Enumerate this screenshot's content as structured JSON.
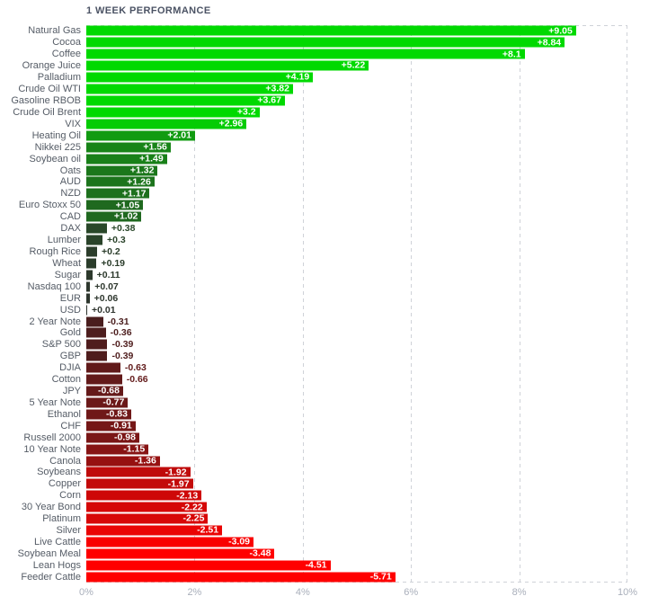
{
  "header": {
    "title": "1 WEEK PERFORMANCE"
  },
  "chart_data": {
    "type": "bar",
    "orientation": "horizontal",
    "title": "1 WEEK PERFORMANCE",
    "xlabel": "",
    "ylabel": "",
    "xlim": [
      0,
      10
    ],
    "x_ticks": [
      "0%",
      "2%",
      "4%",
      "6%",
      "8%",
      "10%"
    ],
    "grid": "dashed vertical gridlines every 2%, dashed top and bottom plot borders",
    "legend": "none",
    "value_semantics": "bar length = absolute weekly % change; green = gain, red = loss; color intensity scales with magnitude",
    "points": [
      {
        "label": "Natural Gas",
        "value": 9.05,
        "display": "+9.05",
        "color": "#00d900"
      },
      {
        "label": "Cocoa",
        "value": 8.84,
        "display": "+8.84",
        "color": "#00d900"
      },
      {
        "label": "Coffee",
        "value": 8.1,
        "display": "+8.1",
        "color": "#00d900"
      },
      {
        "label": "Orange Juice",
        "value": 5.22,
        "display": "+5.22",
        "color": "#00d900"
      },
      {
        "label": "Palladium",
        "value": 4.19,
        "display": "+4.19",
        "color": "#00d900"
      },
      {
        "label": "Crude Oil WTI",
        "value": 3.82,
        "display": "+3.82",
        "color": "#00d900"
      },
      {
        "label": "Gasoline RBOB",
        "value": 3.67,
        "display": "+3.67",
        "color": "#00d900"
      },
      {
        "label": "Crude Oil Brent",
        "value": 3.2,
        "display": "+3.2",
        "color": "#00d900"
      },
      {
        "label": "VIX",
        "value": 2.96,
        "display": "+2.96",
        "color": "#04cc04"
      },
      {
        "label": "Heating Oil",
        "value": 2.01,
        "display": "+2.01",
        "color": "#119b11"
      },
      {
        "label": "Nikkei 225",
        "value": 1.56,
        "display": "+1.56",
        "color": "#188418"
      },
      {
        "label": "Soybean oil",
        "value": 1.49,
        "display": "+1.49",
        "color": "#198019"
      },
      {
        "label": "Oats",
        "value": 1.32,
        "display": "+1.32",
        "color": "#1b771b"
      },
      {
        "label": "AUD",
        "value": 1.26,
        "display": "+1.26",
        "color": "#1c741c"
      },
      {
        "label": "NZD",
        "value": 1.17,
        "display": "+1.17",
        "color": "#1d701d"
      },
      {
        "label": "Euro Stoxx 50",
        "value": 1.05,
        "display": "+1.05",
        "color": "#1f691f"
      },
      {
        "label": "CAD",
        "value": 1.02,
        "display": "+1.02",
        "color": "#1f681f"
      },
      {
        "label": "DAX",
        "value": 0.38,
        "display": "+0.38",
        "color": "#294729"
      },
      {
        "label": "Lumber",
        "value": 0.3,
        "display": "+0.3",
        "color": "#2a432a"
      },
      {
        "label": "Rough Rice",
        "value": 0.2,
        "display": "+0.2",
        "color": "#2b3d2b"
      },
      {
        "label": "Wheat",
        "value": 0.19,
        "display": "+0.19",
        "color": "#2b3d2b"
      },
      {
        "label": "Sugar",
        "value": 0.11,
        "display": "+0.11",
        "color": "#2c392c"
      },
      {
        "label": "Nasdaq 100",
        "value": 0.07,
        "display": "+0.07",
        "color": "#2d372d"
      },
      {
        "label": "EUR",
        "value": 0.06,
        "display": "+0.06",
        "color": "#2d362d"
      },
      {
        "label": "USD",
        "value": 0.01,
        "display": "+0.01",
        "color": "#2e342e"
      },
      {
        "label": "2 Year Note",
        "value": -0.31,
        "display": "-0.31",
        "color": "#4a1e1e"
      },
      {
        "label": "Gold",
        "value": -0.36,
        "display": "-0.36",
        "color": "#4d1e1e"
      },
      {
        "label": "S&P 500",
        "value": -0.39,
        "display": "-0.39",
        "color": "#4f1d1d"
      },
      {
        "label": "GBP",
        "value": -0.39,
        "display": "-0.39",
        "color": "#4f1d1d"
      },
      {
        "label": "DJIA",
        "value": -0.63,
        "display": "-0.63",
        "color": "#611a1a"
      },
      {
        "label": "Cotton",
        "value": -0.66,
        "display": "-0.66",
        "color": "#631a1a"
      },
      {
        "label": "JPY",
        "value": -0.68,
        "display": "-0.68",
        "color": "#651a1a"
      },
      {
        "label": "5 Year Note",
        "value": -0.77,
        "display": "-0.77",
        "color": "#6b1919"
      },
      {
        "label": "Ethanol",
        "value": -0.83,
        "display": "-0.83",
        "color": "#6f1818"
      },
      {
        "label": "CHF",
        "value": -0.91,
        "display": "-0.91",
        "color": "#751717"
      },
      {
        "label": "Russell 2000",
        "value": -0.98,
        "display": "-0.98",
        "color": "#7a1616"
      },
      {
        "label": "10 Year Note",
        "value": -1.15,
        "display": "-1.15",
        "color": "#871414"
      },
      {
        "label": "Canola",
        "value": -1.36,
        "display": "-1.36",
        "color": "#961111"
      },
      {
        "label": "Soybeans",
        "value": -1.92,
        "display": "-1.92",
        "color": "#bf0b0b"
      },
      {
        "label": "Copper",
        "value": -1.97,
        "display": "-1.97",
        "color": "#c30a0a"
      },
      {
        "label": "Corn",
        "value": -2.13,
        "display": "-2.13",
        "color": "#ce0808"
      },
      {
        "label": "30 Year Bond",
        "value": -2.22,
        "display": "-2.22",
        "color": "#d50707"
      },
      {
        "label": "Platinum",
        "value": -2.25,
        "display": "-2.25",
        "color": "#d70707"
      },
      {
        "label": "Silver",
        "value": -2.51,
        "display": "-2.51",
        "color": "#ea0404"
      },
      {
        "label": "Live Cattle",
        "value": -3.09,
        "display": "-3.09",
        "color": "#f90101"
      },
      {
        "label": "Soybean Meal",
        "value": -3.48,
        "display": "-3.48",
        "color": "#ff0000"
      },
      {
        "label": "Lean Hogs",
        "value": -4.51,
        "display": "-4.51",
        "color": "#ff0000"
      },
      {
        "label": "Feeder Cattle",
        "value": -5.71,
        "display": "-5.71",
        "color": "#ff0000"
      }
    ]
  },
  "styles": {
    "background": "#ffffff",
    "title_color": "#4b5364",
    "category_label_color": "#555c66",
    "tick_label_color": "#a9afbb",
    "grid_color": "#cfd2d8",
    "inside_value_label_color": "#ffffff",
    "positive_max_color": "#00d900",
    "negative_max_color": "#ff0000"
  }
}
